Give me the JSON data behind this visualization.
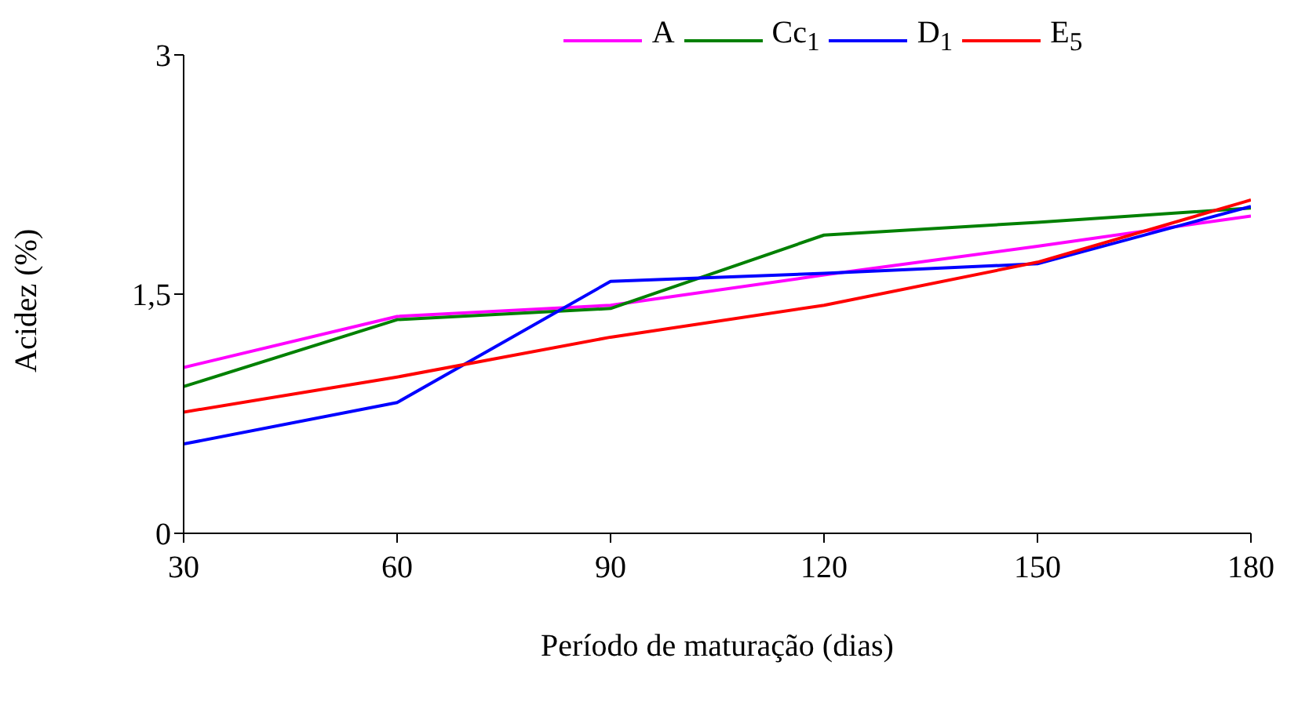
{
  "chart_data": {
    "type": "line",
    "xlabel": "Período de maturação (dias)",
    "ylabel": "Acidez (%)",
    "x": [
      30,
      60,
      90,
      120,
      150,
      180
    ],
    "xlim": [
      30,
      180
    ],
    "xticks": [
      30,
      60,
      90,
      120,
      150,
      180
    ],
    "ylim": [
      0,
      3
    ],
    "yticks": [
      0,
      {
        "value": 1.5,
        "label": "1,5"
      },
      3
    ],
    "grid": false,
    "legend": "top",
    "marker": "none",
    "line_style": "solid",
    "series": [
      {
        "name": "A",
        "color": "#ff00ff",
        "values": [
          1.04,
          1.36,
          1.43,
          1.62,
          1.8,
          1.99
        ]
      },
      {
        "name": "Cc$_{1}$",
        "color": "#008000",
        "values": [
          0.92,
          1.34,
          1.41,
          1.87,
          1.95,
          2.04
        ]
      },
      {
        "name": "D$_{1}$",
        "color": "#0000ff",
        "values": [
          0.56,
          0.82,
          1.58,
          1.63,
          1.69,
          2.05
        ]
      },
      {
        "name": "E$_{5}$",
        "color": "#ff0000",
        "values": [
          0.76,
          0.98,
          1.23,
          1.43,
          1.7,
          2.09
        ]
      }
    ]
  }
}
